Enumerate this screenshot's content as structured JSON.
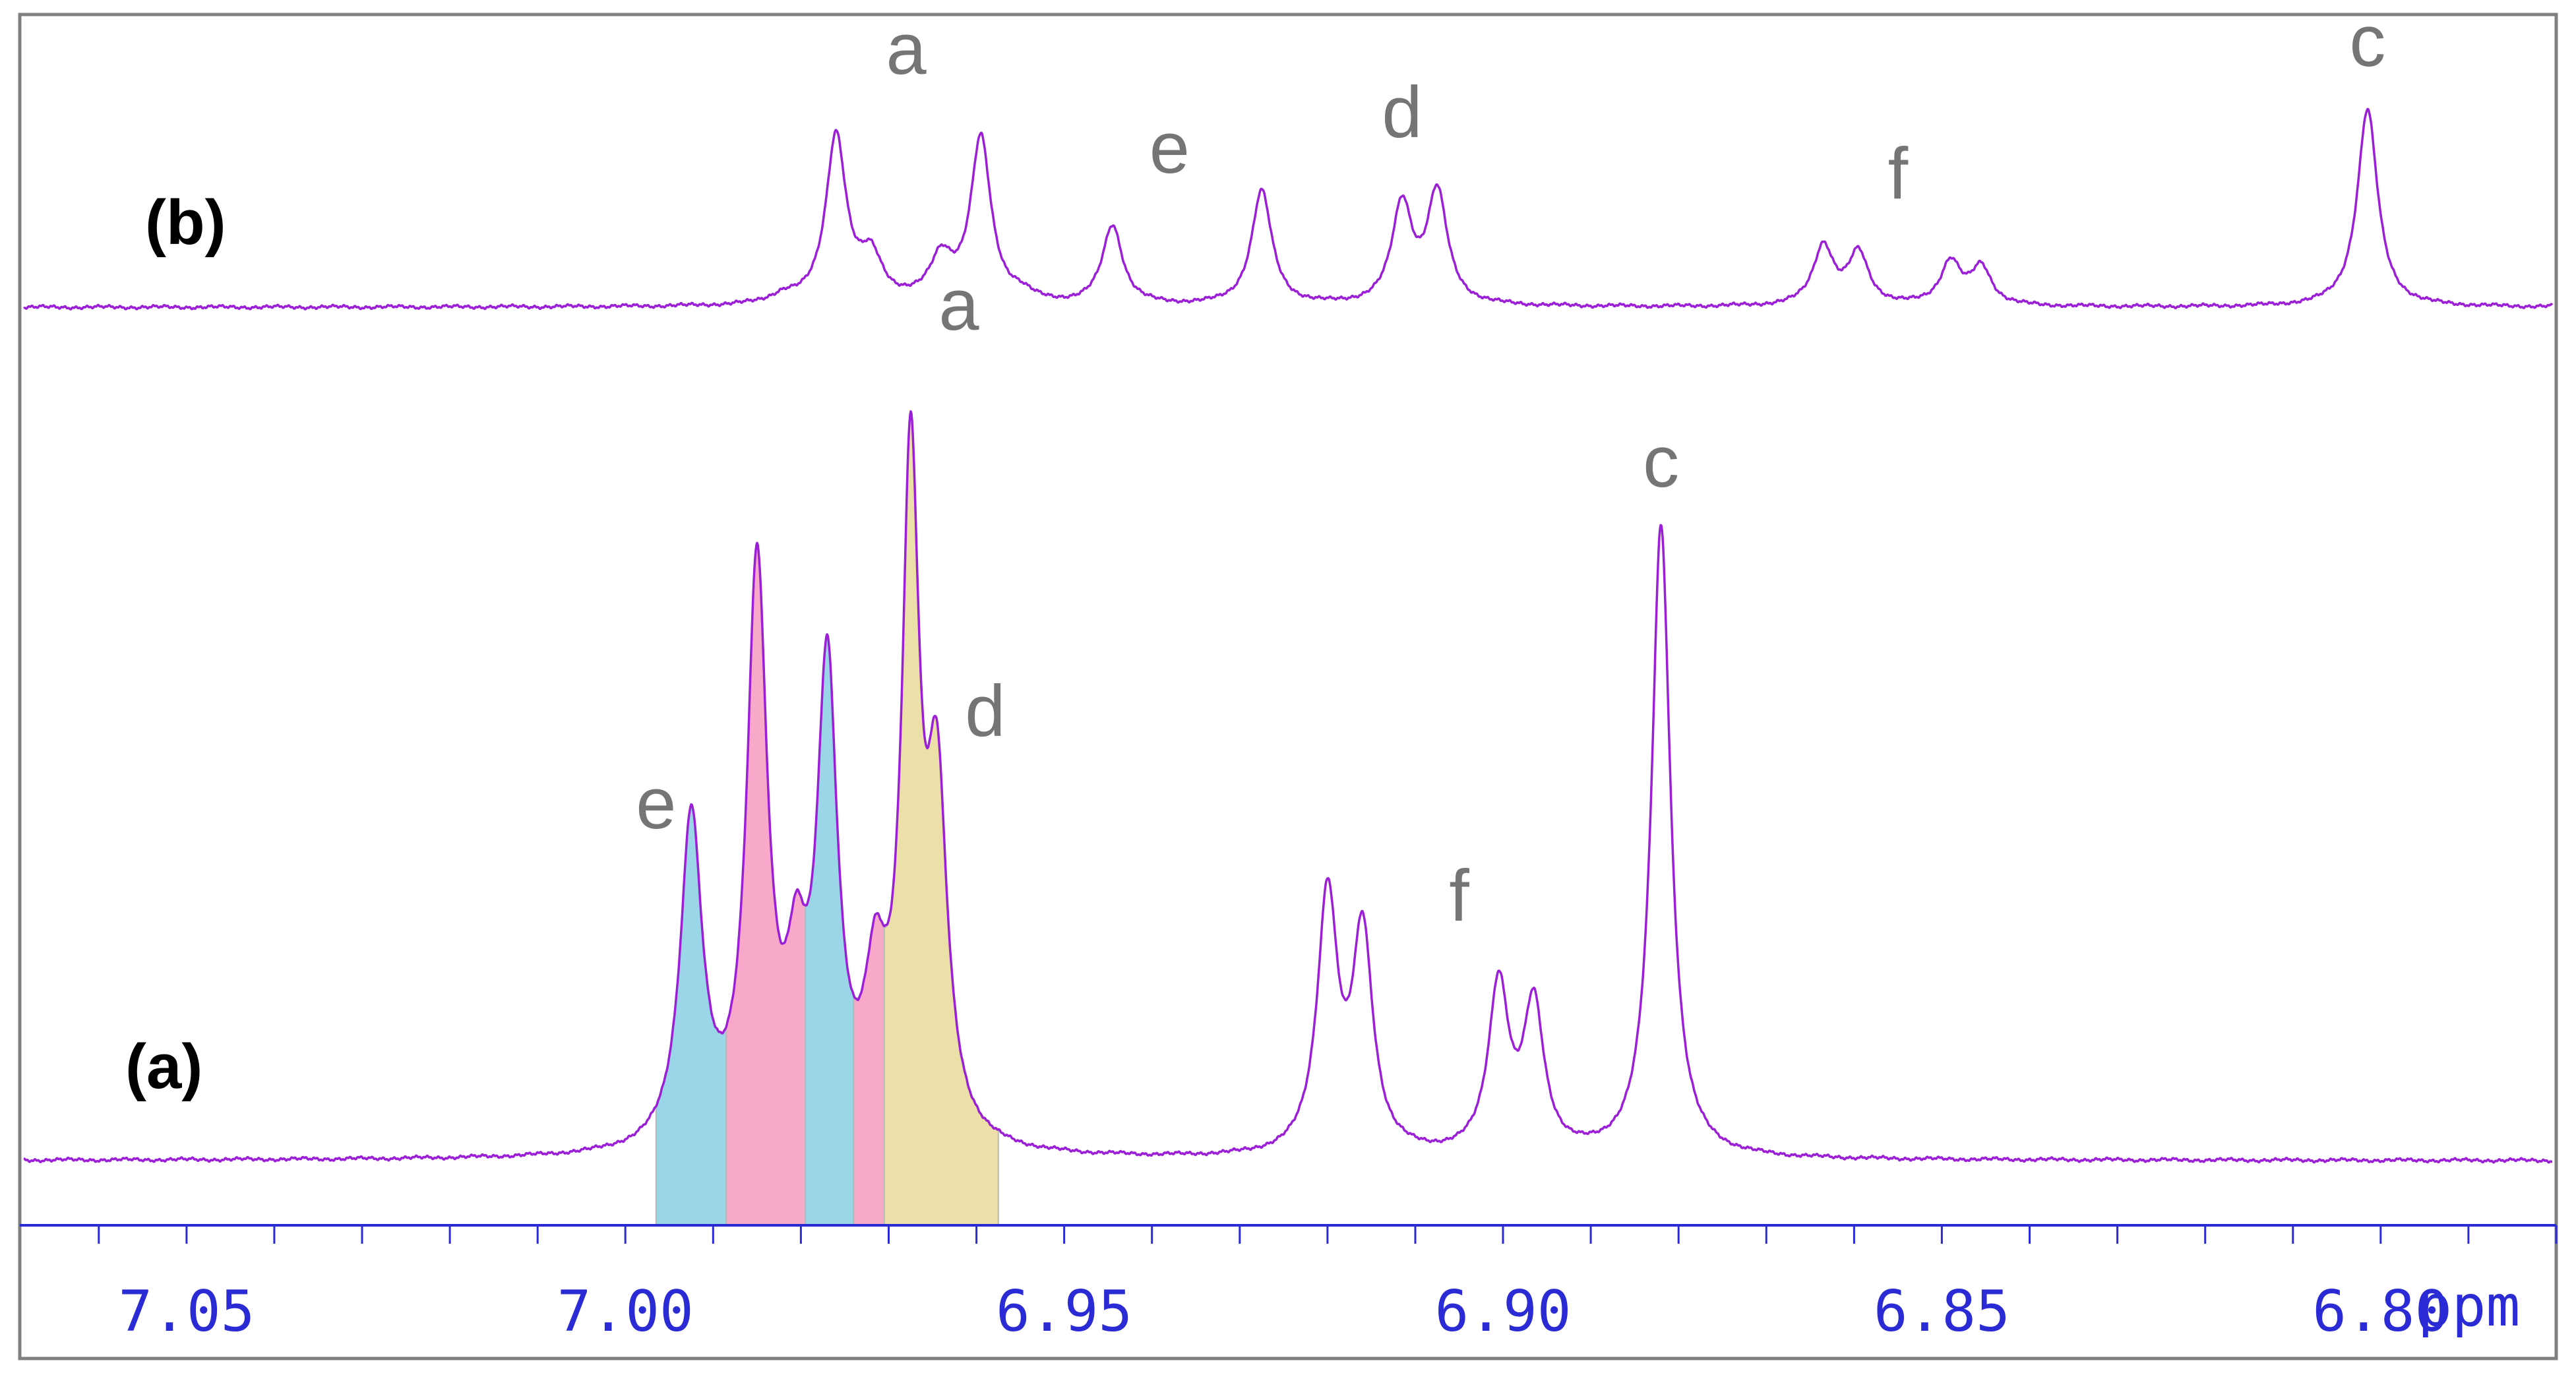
{
  "chart_data": {
    "type": "line",
    "xlabel": "ppm",
    "x_reversed": true,
    "xlim": [
      7.069,
      6.78
    ],
    "x_ticks": [
      7.05,
      7.0,
      6.95,
      6.9,
      6.85,
      6.8
    ],
    "x_tick_labels": [
      "7.05",
      "7.00",
      "6.95",
      "6.90",
      "6.85",
      "6.80"
    ],
    "x_minor_step": 0.01,
    "grid": false,
    "colors": {
      "trace": "#9b1fd6",
      "axis": "#2b2bd6",
      "label": "#757575",
      "fill_blue": "#9bd6e8",
      "fill_pink": "#f8a8c8",
      "fill_tan": "#ecdfa8"
    },
    "spectra": [
      {
        "panel_label": "(b)",
        "peaks": [
          {
            "ppm": 6.982,
            "height": 0.04,
            "width": 0.0018
          },
          {
            "ppm": 6.976,
            "height": 0.85,
            "width": 0.0014
          },
          {
            "ppm": 6.972,
            "height": 0.22,
            "width": 0.0016
          },
          {
            "ppm": 6.964,
            "height": 0.22,
            "width": 0.0016
          },
          {
            "ppm": 6.9595,
            "height": 0.83,
            "width": 0.0014
          },
          {
            "ppm": 6.955,
            "height": 0.04,
            "width": 0.0018
          },
          {
            "ppm": 6.9445,
            "height": 0.4,
            "width": 0.0014
          },
          {
            "ppm": 6.9275,
            "height": 0.58,
            "width": 0.0014
          },
          {
            "ppm": 6.9115,
            "height": 0.5,
            "width": 0.0014
          },
          {
            "ppm": 6.9075,
            "height": 0.56,
            "width": 0.0014
          },
          {
            "ppm": 6.8635,
            "height": 0.3,
            "width": 0.0014
          },
          {
            "ppm": 6.8595,
            "height": 0.26,
            "width": 0.0014
          },
          {
            "ppm": 6.849,
            "height": 0.22,
            "width": 0.0014
          },
          {
            "ppm": 6.8455,
            "height": 0.19,
            "width": 0.0014
          },
          {
            "ppm": 6.8015,
            "height": 1.0,
            "width": 0.0014
          }
        ],
        "labels": [
          {
            "text": "a",
            "ppm": 6.968,
            "height": 1.18
          },
          {
            "text": "e",
            "ppm": 6.938,
            "height": 0.68
          },
          {
            "text": "d",
            "ppm": 6.9115,
            "height": 0.86
          },
          {
            "text": "f",
            "ppm": 6.855,
            "height": 0.55
          },
          {
            "text": "c",
            "ppm": 6.8015,
            "height": 1.22
          }
        ]
      },
      {
        "panel_label": "(a)",
        "peaks": [
          {
            "ppm": 6.9925,
            "height": 0.356,
            "width": 0.0015
          },
          {
            "ppm": 6.985,
            "height": 0.62,
            "width": 0.0014
          },
          {
            "ppm": 6.9805,
            "height": 0.15,
            "width": 0.0014
          },
          {
            "ppm": 6.977,
            "height": 0.5,
            "width": 0.0014
          },
          {
            "ppm": 6.9715,
            "height": 0.15,
            "width": 0.0015
          },
          {
            "ppm": 6.9675,
            "height": 0.71,
            "width": 0.0012
          },
          {
            "ppm": 6.9645,
            "height": 0.36,
            "width": 0.0014
          },
          {
            "ppm": 6.92,
            "height": 0.278,
            "width": 0.0014
          },
          {
            "ppm": 6.916,
            "height": 0.235,
            "width": 0.0014
          },
          {
            "ppm": 6.9005,
            "height": 0.182,
            "width": 0.0014
          },
          {
            "ppm": 6.8965,
            "height": 0.158,
            "width": 0.0014
          },
          {
            "ppm": 6.882,
            "height": 0.685,
            "width": 0.0013
          }
        ],
        "filled_regions": [
          {
            "from": 6.9965,
            "to": 6.9885,
            "color": "fill_blue"
          },
          {
            "from": 6.9885,
            "to": 6.9795,
            "color": "fill_pink"
          },
          {
            "from": 6.9795,
            "to": 6.974,
            "color": "fill_blue"
          },
          {
            "from": 6.974,
            "to": 6.9705,
            "color": "fill_pink"
          },
          {
            "from": 6.9705,
            "to": 6.9575,
            "color": "fill_tan"
          }
        ],
        "labels": [
          {
            "text": "e",
            "ppm": 6.9965,
            "height": 0.36
          },
          {
            "text": "a",
            "ppm": 6.962,
            "height": 0.9
          },
          {
            "text": "d",
            "ppm": 6.959,
            "height": 0.46
          },
          {
            "text": "f",
            "ppm": 6.905,
            "height": 0.26
          },
          {
            "text": "c",
            "ppm": 6.882,
            "height": 0.73
          }
        ]
      }
    ]
  }
}
